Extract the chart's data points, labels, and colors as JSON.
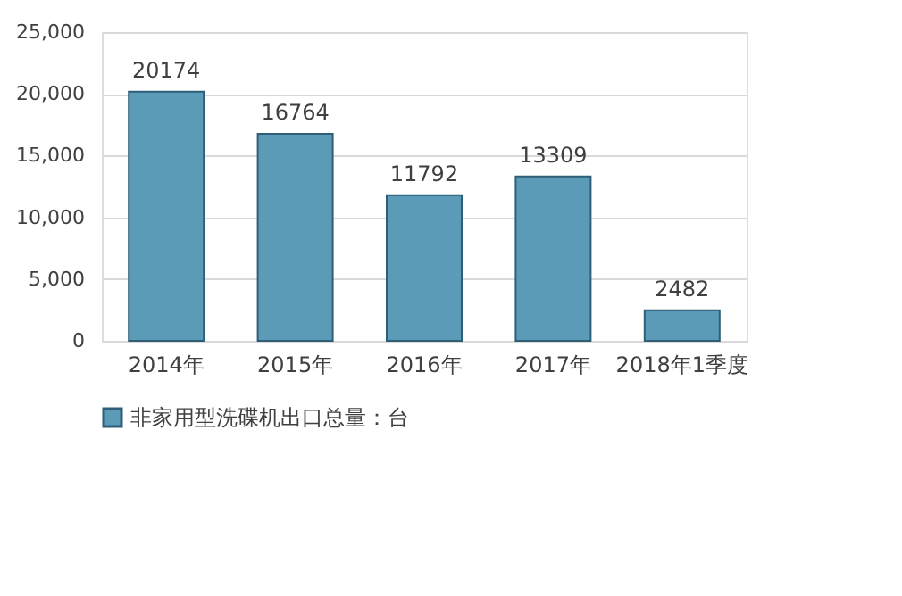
{
  "chart_data": {
    "type": "bar",
    "categories": [
      "2014年",
      "2015年",
      "2016年",
      "2017年",
      "2018年1季度"
    ],
    "series": [
      {
        "name": "非家用型洗碟机出口总量：台",
        "color": "#5b9bb8",
        "values": [
          20174,
          16764,
          11792,
          13309,
          2482
        ]
      }
    ],
    "ylim": [
      0,
      25000
    ],
    "yticks": [
      {
        "value": 0,
        "label": "0"
      },
      {
        "value": 5000,
        "label": "5,000"
      },
      {
        "value": 10000,
        "label": "10,000"
      },
      {
        "value": 15000,
        "label": "15,000"
      },
      {
        "value": 20000,
        "label": "20,000"
      },
      {
        "value": 25000,
        "label": "25,000"
      }
    ],
    "grid": "y",
    "legend": "bottom",
    "data_labels": true
  }
}
